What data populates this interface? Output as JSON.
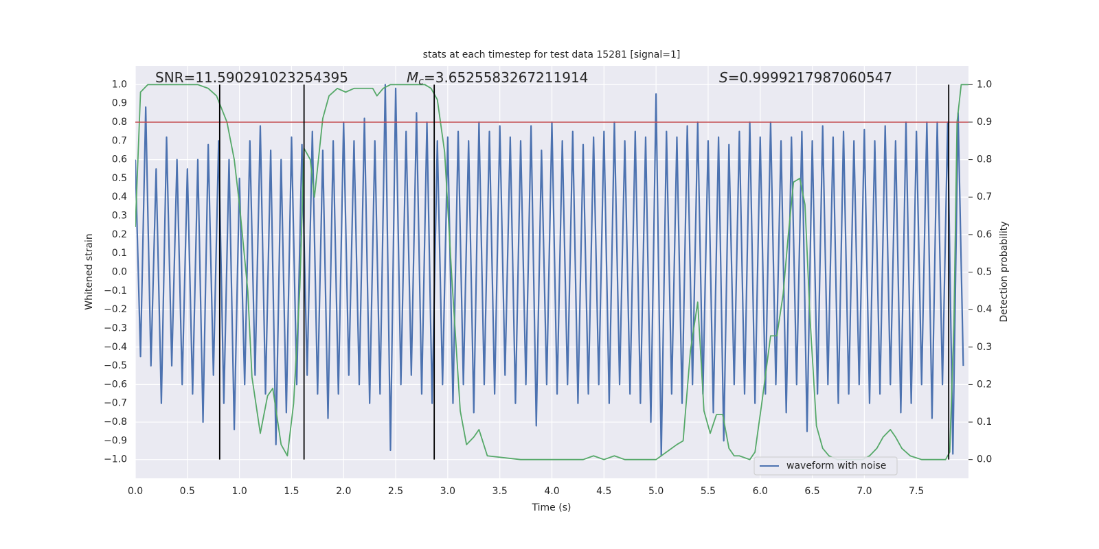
{
  "chart_data": {
    "type": "line",
    "title": "stats at each timestep for test data 15281 [signal=1]",
    "x_label": "Time (s)",
    "y_label": "Whitened strain",
    "y2_label": "Detection probability",
    "annotations": [
      {
        "text": "SNR=11.590291023254395"
      },
      {
        "symbol": "M",
        "subscript": "c",
        "text": "=3.6525583267211914"
      },
      {
        "symbol": "S",
        "text": "=0.9999217987060547"
      }
    ],
    "xlim": [
      0,
      8
    ],
    "ylim": [
      -1.1,
      1.1
    ],
    "y2lim": [
      -0.05,
      1.05
    ],
    "xticks": [
      {
        "value": 0,
        "label": "0.0"
      },
      0.5,
      {
        "value": 1,
        "label": "1.0"
      },
      1.5,
      {
        "value": 2,
        "label": "2.0"
      },
      2.5,
      {
        "value": 3,
        "label": "3.0"
      },
      3.5,
      {
        "value": 4,
        "label": "4.0"
      },
      4.5,
      {
        "value": 5,
        "label": "5.0"
      },
      5.5,
      {
        "value": 6,
        "label": "6.0"
      },
      6.5,
      {
        "value": 7,
        "label": "7.0"
      },
      7.5
    ],
    "yticks": [
      {
        "value": 1,
        "label": "1.0"
      },
      0.9,
      0.8,
      0.7,
      0.6,
      0.5,
      0.4,
      0.3,
      0.2,
      0.1,
      {
        "value": 0,
        "label": "0.0"
      },
      {
        "value": -0.1,
        "label": "−0.1"
      },
      {
        "value": -0.2,
        "label": "−0.2"
      },
      {
        "value": -0.3,
        "label": "−0.3"
      },
      {
        "value": -0.4,
        "label": "−0.4"
      },
      {
        "value": -0.5,
        "label": "−0.5"
      },
      {
        "value": -0.6,
        "label": "−0.6"
      },
      {
        "value": -0.7,
        "label": "−0.7"
      },
      {
        "value": -0.8,
        "label": "−0.8"
      },
      {
        "value": -0.9,
        "label": "−0.9"
      },
      {
        "value": -1,
        "label": "−1.0"
      }
    ],
    "y2ticks": [
      {
        "value": 1,
        "label": "1.0"
      },
      0.9,
      0.8,
      0.7,
      0.6,
      0.5,
      0.4,
      0.3,
      0.2,
      0.1,
      {
        "value": 0,
        "label": "0.0"
      }
    ],
    "grid": true,
    "legend": "lower right",
    "series": [
      {
        "name": "waveform with noise",
        "color": "#4c72b0",
        "x": [
          0,
          0.05,
          0.1,
          0.15,
          0.2,
          0.25,
          0.3,
          0.35,
          0.4,
          0.45,
          0.5,
          0.55,
          0.6,
          0.65,
          0.7,
          0.75,
          0.8,
          0.85,
          0.9,
          0.95,
          1,
          1.05,
          1.1,
          1.15,
          1.2,
          1.25,
          1.3,
          1.35,
          1.4,
          1.45,
          1.5,
          1.55,
          1.6,
          1.65,
          1.7,
          1.75,
          1.8,
          1.85,
          1.9,
          1.95,
          2,
          2.05,
          2.1,
          2.15,
          2.2,
          2.25,
          2.3,
          2.35,
          2.4,
          2.45,
          2.5,
          2.55,
          2.6,
          2.65,
          2.7,
          2.75,
          2.8,
          2.85,
          2.9,
          2.95,
          3,
          3.05,
          3.1,
          3.15,
          3.2,
          3.25,
          3.3,
          3.35,
          3.4,
          3.45,
          3.5,
          3.55,
          3.6,
          3.65,
          3.7,
          3.75,
          3.8,
          3.85,
          3.9,
          3.95,
          4,
          4.05,
          4.1,
          4.15,
          4.2,
          4.25,
          4.3,
          4.35,
          4.4,
          4.45,
          4.5,
          4.55,
          4.6,
          4.65,
          4.7,
          4.75,
          4.8,
          4.85,
          4.9,
          4.95,
          5,
          5.05,
          5.1,
          5.15,
          5.2,
          5.25,
          5.3,
          5.35,
          5.4,
          5.45,
          5.5,
          5.55,
          5.6,
          5.65,
          5.7,
          5.75,
          5.8,
          5.85,
          5.9,
          5.95,
          6,
          6.05,
          6.1,
          6.15,
          6.2,
          6.25,
          6.3,
          6.35,
          6.4,
          6.45,
          6.5,
          6.55,
          6.6,
          6.65,
          6.7,
          6.75,
          6.8,
          6.85,
          6.9,
          6.95,
          7,
          7.05,
          7.1,
          7.15,
          7.2,
          7.25,
          7.3,
          7.35,
          7.4,
          7.45,
          7.5,
          7.55,
          7.6,
          7.65,
          7.7,
          7.75,
          7.8,
          7.85,
          7.9,
          7.95
        ],
        "values": [
          0.6,
          -0.45,
          0.88,
          -0.5,
          0.55,
          -0.7,
          0.72,
          -0.5,
          0.6,
          -0.6,
          0.55,
          -0.65,
          0.6,
          -0.8,
          0.68,
          -0.55,
          0.7,
          -0.7,
          0.6,
          -0.84,
          0.5,
          -0.6,
          0.7,
          -0.55,
          0.78,
          -0.65,
          0.65,
          -0.92,
          0.6,
          -0.75,
          0.72,
          -0.6,
          0.68,
          -0.55,
          0.75,
          -0.65,
          0.65,
          -0.78,
          0.7,
          -0.65,
          0.8,
          -0.55,
          0.7,
          -0.6,
          0.82,
          -0.7,
          0.7,
          -0.65,
          1.0,
          -0.95,
          0.98,
          -0.6,
          0.75,
          -0.55,
          0.85,
          -0.65,
          0.8,
          -0.7,
          0.7,
          -0.6,
          0.72,
          -0.7,
          0.75,
          -0.6,
          0.7,
          -0.75,
          0.8,
          -0.6,
          0.75,
          -0.65,
          0.78,
          -0.55,
          0.72,
          -0.7,
          0.7,
          -0.6,
          0.78,
          -0.82,
          0.65,
          -0.6,
          0.8,
          -0.65,
          0.7,
          -0.6,
          0.75,
          -0.7,
          0.68,
          -0.65,
          0.72,
          -0.6,
          0.75,
          -0.7,
          0.8,
          -0.6,
          0.7,
          -0.65,
          0.75,
          -0.7,
          0.72,
          -0.8,
          0.95,
          -0.98,
          0.75,
          -0.65,
          0.72,
          -0.7,
          0.78,
          -0.6,
          0.8,
          -0.65,
          0.7,
          -0.75,
          0.72,
          -0.9,
          0.68,
          -0.6,
          0.75,
          -0.65,
          0.8,
          -0.7,
          0.72,
          -0.65,
          0.8,
          -0.6,
          0.7,
          -0.75,
          0.72,
          -0.6,
          0.75,
          -0.85,
          0.7,
          -0.65,
          0.78,
          -0.6,
          0.72,
          -0.7,
          0.75,
          -0.65,
          0.7,
          -0.6,
          0.76,
          -0.7,
          0.7,
          -0.65,
          0.78,
          -0.6,
          0.7,
          -0.75,
          0.8,
          -0.7,
          0.75,
          -0.6,
          0.8,
          -0.78,
          0.8,
          -0.6,
          0.8,
          -0.97,
          0.85,
          -0.5
        ]
      },
      {
        "color": "#55a868",
        "axis": "y2",
        "x": [
          0,
          0.05,
          0.12,
          0.6,
          0.7,
          0.78,
          0.88,
          0.95,
          1.0,
          1.08,
          1.12,
          1.2,
          1.27,
          1.32,
          1.4,
          1.46,
          1.52,
          1.58,
          1.62,
          1.68,
          1.72,
          1.8,
          1.86,
          1.94,
          2.02,
          2.1,
          2.2,
          2.28,
          2.32,
          2.38,
          2.45,
          2.78,
          2.84,
          2.9,
          2.97,
          3.04,
          3.12,
          3.18,
          3.25,
          3.3,
          3.38,
          3.7,
          4.2,
          4.3,
          4.4,
          4.5,
          4.6,
          4.7,
          4.9,
          5.0,
          5.1,
          5.2,
          5.26,
          5.33,
          5.4,
          5.46,
          5.52,
          5.58,
          5.64,
          5.7,
          5.75,
          5.8,
          5.9,
          5.95,
          6.02,
          6.1,
          6.16,
          6.22,
          6.27,
          6.32,
          6.38,
          6.43,
          6.48,
          6.54,
          6.6,
          6.66,
          6.74,
          6.86,
          6.98,
          7.05,
          7.12,
          7.18,
          7.25,
          7.3,
          7.36,
          7.44,
          7.55,
          7.78,
          7.82,
          7.86,
          7.89,
          7.93,
          8.0
        ],
        "values": [
          0.62,
          0.98,
          1.0,
          1.0,
          0.99,
          0.97,
          0.9,
          0.8,
          0.68,
          0.45,
          0.22,
          0.07,
          0.17,
          0.19,
          0.04,
          0.01,
          0.15,
          0.46,
          0.83,
          0.8,
          0.7,
          0.91,
          0.97,
          0.99,
          0.98,
          0.99,
          0.99,
          0.99,
          0.97,
          0.99,
          1.0,
          1.0,
          0.99,
          0.96,
          0.82,
          0.48,
          0.13,
          0.04,
          0.06,
          0.08,
          0.01,
          0.0,
          0.0,
          0.0,
          0.01,
          0.0,
          0.01,
          0.0,
          0.0,
          0.0,
          0.02,
          0.04,
          0.05,
          0.29,
          0.42,
          0.13,
          0.07,
          0.12,
          0.12,
          0.03,
          0.01,
          0.01,
          0.0,
          0.02,
          0.16,
          0.33,
          0.33,
          0.44,
          0.6,
          0.74,
          0.75,
          0.68,
          0.37,
          0.09,
          0.03,
          0.01,
          0.0,
          0.0,
          0.0,
          0.01,
          0.03,
          0.06,
          0.08,
          0.06,
          0.03,
          0.01,
          0.0,
          0.0,
          0.02,
          0.36,
          0.9,
          1.0,
          1.0
        ]
      }
    ],
    "threshold": {
      "value": 0.9,
      "axis": "y2",
      "color": "#c44e52"
    },
    "vlines": {
      "x": [
        0.81,
        1.62,
        2.87,
        7.81
      ],
      "ymin": -1,
      "ymax": 1,
      "color": "#000000"
    }
  }
}
